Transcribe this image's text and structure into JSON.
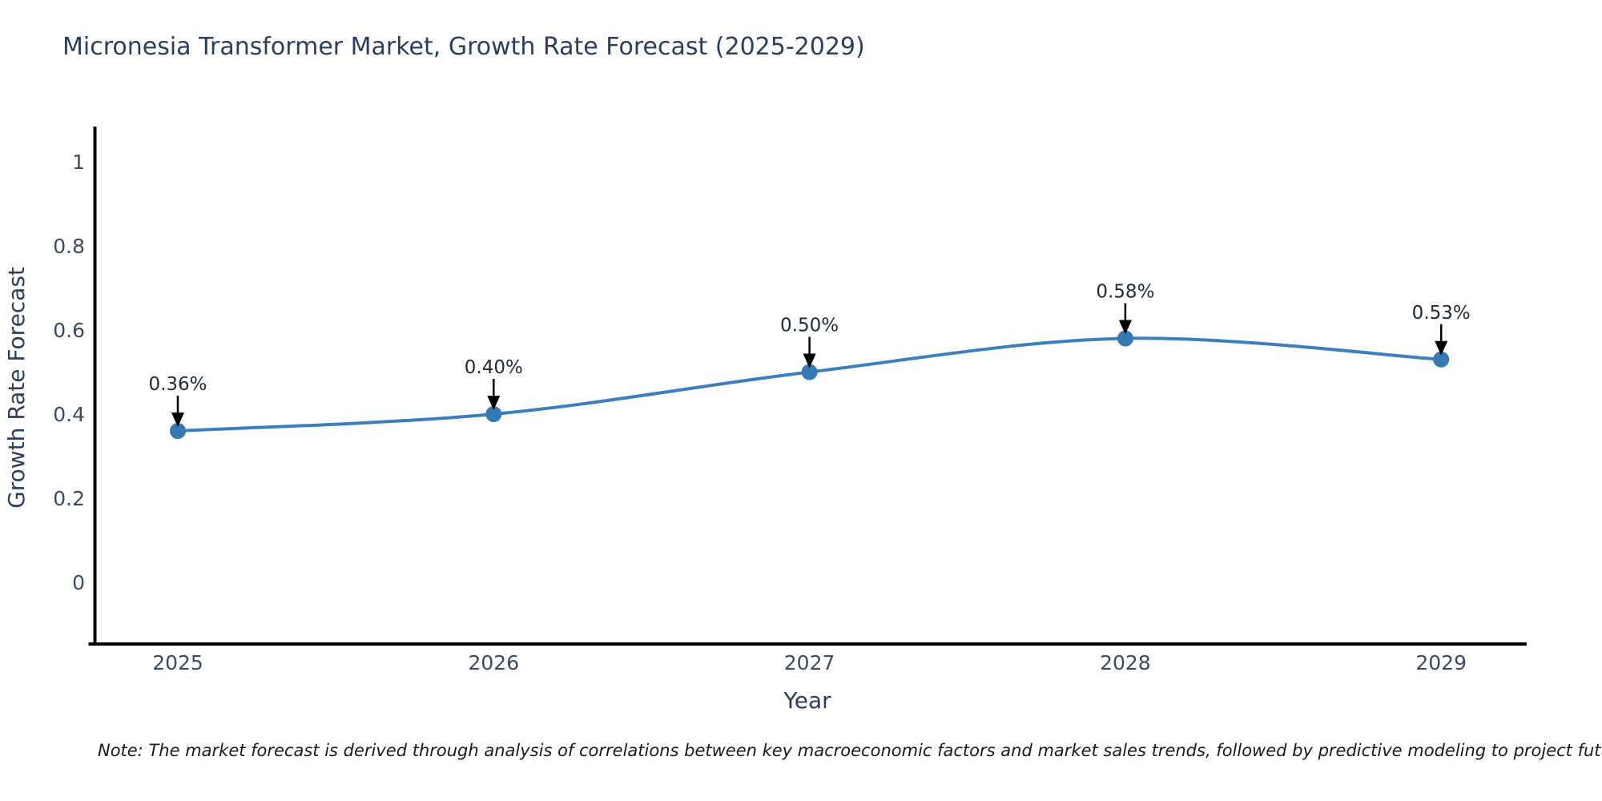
{
  "chart_data": {
    "type": "line",
    "title": "Micronesia Transformer Market, Growth Rate Forecast (2025-2029)",
    "xlabel": "Year",
    "ylabel": "Growth Rate Forecast",
    "x": [
      "2025",
      "2026",
      "2027",
      "2028",
      "2029"
    ],
    "values": [
      0.36,
      0.4,
      0.5,
      0.58,
      0.53
    ],
    "point_labels": [
      "0.36%",
      "0.40%",
      "0.50%",
      "0.58%",
      "0.53%"
    ],
    "ytick_values": [
      0,
      0.2,
      0.4,
      0.6,
      0.8,
      1
    ],
    "ytick_labels": [
      "0",
      "0.2",
      "0.4",
      "0.6",
      "0.8",
      "1"
    ],
    "ylim": [
      -0.15,
      1.08
    ],
    "grid": false,
    "legend": false,
    "line_color": "#3d7ebf",
    "marker_color": "#3579b5",
    "axis_color": "#000000",
    "arrow_color": "#000000",
    "annotation_color": "#222a35",
    "title_color": "#2a3f5f",
    "tick_color": "#3b4a66",
    "note_color": "#1a1a1a",
    "note": "Note: The market forecast is derived through analysis of correlations between key macroeconomic factors and market sales trends, followed by predictive modeling to project future sales"
  }
}
